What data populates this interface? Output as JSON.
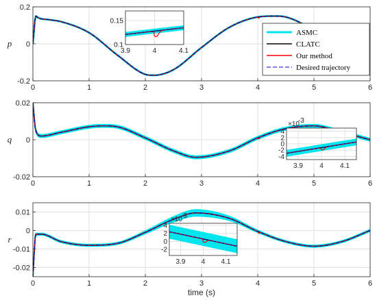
{
  "chart_data": [
    {
      "type": "line",
      "ylabel": "p",
      "xlim": [
        0,
        6
      ],
      "ylim": [
        -0.2,
        0.2
      ],
      "x_ticks": [
        "0",
        "1",
        "2",
        "3",
        "4",
        "5",
        "6"
      ],
      "y_ticks": [
        "0.2",
        "0",
        "-0.2"
      ],
      "grid": true,
      "legend_position": "top-right",
      "series": [
        {
          "name": "ASMC",
          "color": "#00e5ee"
        },
        {
          "name": "CLATC",
          "color": "#000000"
        },
        {
          "name": "Our method",
          "color": "#ff0000"
        },
        {
          "name": "Desired trajectory",
          "color": "#0000cc",
          "style": "dashed"
        }
      ],
      "x": [
        0,
        0.05,
        0.1,
        0.3,
        0.5,
        1.0,
        1.5,
        2.0,
        2.15,
        2.5,
        3.0,
        3.5,
        4.0,
        4.3,
        4.5,
        5.0,
        5.2
      ],
      "y": [
        0,
        0.15,
        0.14,
        0.13,
        0.12,
        0.06,
        -0.06,
        -0.165,
        -0.17,
        -0.14,
        -0.02,
        0.09,
        0.145,
        0.15,
        0.145,
        0.07,
        0.02
      ],
      "inset": {
        "xlim": [
          3.9,
          4.1
        ],
        "ylim": [
          0.1,
          0.17
        ],
        "x_ticks": [
          "3.9",
          "4",
          "4.1"
        ],
        "y_ticks": [
          "0.15",
          "0.1"
        ]
      }
    },
    {
      "type": "line",
      "ylabel": "q",
      "xlim": [
        0,
        6
      ],
      "ylim": [
        -0.02,
        0.02
      ],
      "x_ticks": [
        "0",
        "1",
        "2",
        "3",
        "4",
        "5",
        "6"
      ],
      "y_ticks": [
        "0.02",
        "0",
        "-0.02"
      ],
      "grid": true,
      "x": [
        0,
        0.05,
        0.15,
        0.5,
        1.0,
        1.25,
        1.5,
        2.0,
        2.5,
        2.9,
        3.5,
        4.0,
        4.5,
        5.0,
        5.5,
        6.0
      ],
      "y": [
        0.02,
        0.005,
        0.002,
        0.004,
        0.007,
        0.0075,
        0.007,
        0.001,
        -0.006,
        -0.0095,
        -0.006,
        0.001,
        0.006,
        0.0075,
        0.004,
        0.0
      ],
      "inset": {
        "xlim": [
          3.85,
          4.15
        ],
        "ylim": [
          -0.005,
          0.005
        ],
        "x_ticks": [
          "3.9",
          "4",
          "4.1"
        ],
        "y_ticks": [
          "4",
          "2",
          "0",
          "-2",
          "-4"
        ],
        "multiplier": "×10",
        "exponent": "-3"
      }
    },
    {
      "type": "line",
      "ylabel": "r",
      "xlim": [
        0,
        6
      ],
      "ylim": [
        -0.025,
        0.015
      ],
      "x_ticks": [
        "0",
        "1",
        "2",
        "3",
        "4",
        "5",
        "6"
      ],
      "y_ticks": [
        "0.01",
        "0",
        "-0.01",
        "-0.02"
      ],
      "xlabel": "time (s)",
      "grid": true,
      "x": [
        0,
        0.05,
        0.15,
        0.5,
        1.0,
        1.5,
        2.0,
        2.5,
        2.9,
        3.5,
        4.0,
        4.5,
        5.0,
        5.5,
        6.0
      ],
      "y": [
        -0.025,
        -0.002,
        -0.002,
        -0.006,
        -0.008,
        -0.007,
        -0.001,
        0.006,
        0.0095,
        0.0065,
        -0.0005,
        -0.006,
        -0.0085,
        -0.006,
        0.0
      ],
      "inset": {
        "xlim": [
          3.85,
          4.15
        ],
        "ylim": [
          -0.0035,
          0.0045
        ],
        "x_ticks": [
          "3.9",
          "4",
          "4.1"
        ],
        "y_ticks": [
          "4",
          "2",
          "0",
          "-2"
        ],
        "multiplier": "×10",
        "exponent": "-3"
      }
    }
  ]
}
